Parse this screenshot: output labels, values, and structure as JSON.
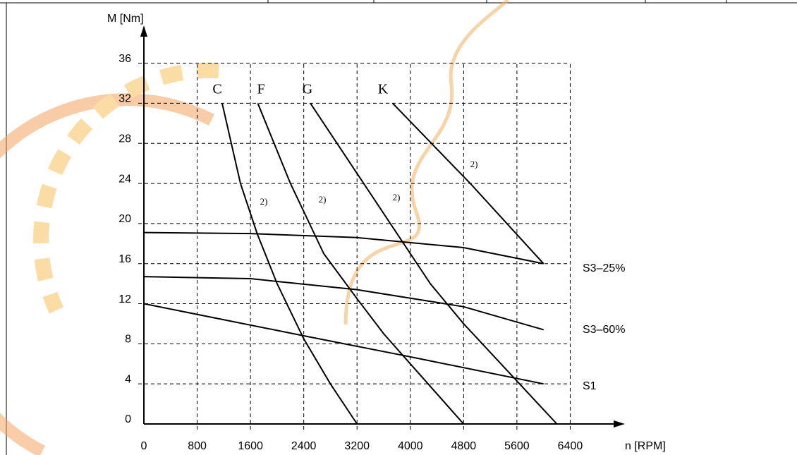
{
  "chart_data": {
    "type": "line",
    "y_label": "M [Nm]",
    "x_label": "n [RPM]",
    "xlim": [
      0,
      7200
    ],
    "ylim": [
      0,
      39
    ],
    "xticks": [
      0,
      800,
      1600,
      2400,
      3200,
      4000,
      4800,
      5600,
      6400
    ],
    "yticks": [
      0,
      4,
      8,
      12,
      16,
      20,
      24,
      28,
      32,
      36
    ],
    "grid": true,
    "annotations": [
      "2)",
      "2)",
      "2)",
      "2)"
    ],
    "series": [
      {
        "name": "C",
        "color": "#000000",
        "x": [
          1175,
          1450,
          1700,
          2000,
          2400,
          2800,
          3200
        ],
        "values": [
          32,
          24,
          19,
          14,
          8.5,
          4,
          0
        ]
      },
      {
        "name": "F",
        "color": "#000000",
        "x": [
          1710,
          2200,
          2700,
          3200,
          3600,
          4200,
          4800
        ],
        "values": [
          32,
          24,
          17,
          12.5,
          9,
          4.5,
          0
        ]
      },
      {
        "name": "G",
        "color": "#000000",
        "x": [
          2500,
          3100,
          3700,
          4300,
          4800,
          5500,
          6200
        ],
        "values": [
          32,
          26,
          20,
          14,
          10,
          5,
          0
        ]
      },
      {
        "name": "K",
        "color": "#000000",
        "x": [
          3735,
          4900,
          6000
        ],
        "values": [
          32,
          24,
          16
        ]
      },
      {
        "name": "S3–25%",
        "color": "#000000",
        "x": [
          0,
          1600,
          3200,
          4800,
          6000
        ],
        "values": [
          19.1,
          19,
          18.6,
          17.6,
          16
        ]
      },
      {
        "name": "S3–60%",
        "color": "#000000",
        "x": [
          0,
          1600,
          3200,
          4800,
          6000
        ],
        "values": [
          14.7,
          14.5,
          13.4,
          11.7,
          9.4
        ]
      },
      {
        "name": "S1",
        "color": "#000000",
        "x": [
          0,
          2400,
          4000,
          6000
        ],
        "values": [
          12,
          8.8,
          6.7,
          4
        ]
      }
    ]
  }
}
